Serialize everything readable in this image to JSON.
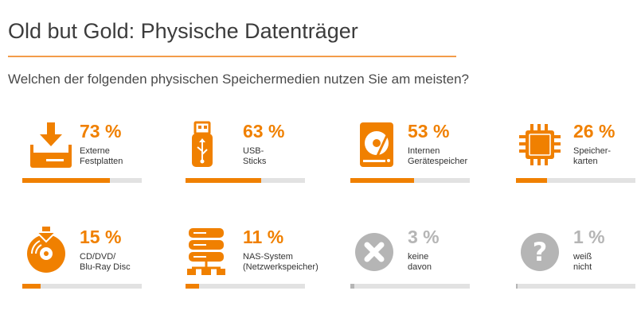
{
  "title": "Old but Gold: Physische Datenträger",
  "subtitle": "Welchen der folgenden physischen Speichermedien nutzen Sie am meisten?",
  "colors": {
    "accent": "#f08000",
    "muted": "#b5b5b5",
    "track": "#e2e2e2",
    "rule": "#f39c4a"
  },
  "chart_data": {
    "type": "bar",
    "unit": "%",
    "categories": [
      "Externe Festplatten",
      "USB-Sticks",
      "Internen Gerätespeicher",
      "Speicher-karten",
      "CD/DVD/ Blu-Ray Disc",
      "NAS-System (Netzwerkspeicher)",
      "keine davon",
      "weiß nicht"
    ],
    "values": [
      73,
      63,
      53,
      26,
      15,
      11,
      3,
      1
    ],
    "ylim": [
      0,
      100
    ],
    "items": [
      {
        "value": 73,
        "pct_label": "73 %",
        "label_lines": [
          "Externe",
          "Festplatten"
        ],
        "icon": "download-drive-icon",
        "muted": false
      },
      {
        "value": 63,
        "pct_label": "63 %",
        "label_lines": [
          "USB-",
          "Sticks"
        ],
        "icon": "usb-stick-icon",
        "muted": false
      },
      {
        "value": 53,
        "pct_label": "53 %",
        "label_lines": [
          "Internen",
          "Gerätespeicher"
        ],
        "icon": "hard-disk-icon",
        "muted": false
      },
      {
        "value": 26,
        "pct_label": "26 %",
        "label_lines": [
          "Speicher-",
          "karten"
        ],
        "icon": "memory-chip-icon",
        "muted": false
      },
      {
        "value": 15,
        "pct_label": "15 %",
        "label_lines": [
          "CD/DVD/",
          "Blu-Ray Disc"
        ],
        "icon": "disc-icon",
        "muted": false
      },
      {
        "value": 11,
        "pct_label": "11 %",
        "label_lines": [
          "NAS-System",
          "(Netzwerkspeicher)"
        ],
        "icon": "nas-server-icon",
        "muted": false
      },
      {
        "value": 3,
        "pct_label": "3 %",
        "label_lines": [
          "keine",
          "davon"
        ],
        "icon": "cross-icon",
        "muted": true
      },
      {
        "value": 1,
        "pct_label": "1 %",
        "label_lines": [
          "weiß",
          "nicht"
        ],
        "icon": "question-icon",
        "muted": true
      }
    ]
  }
}
